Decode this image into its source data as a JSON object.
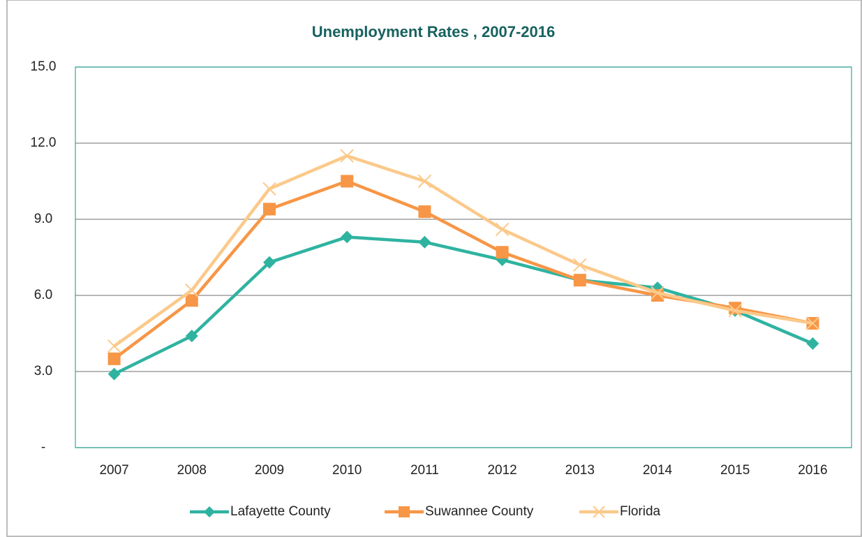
{
  "chart_data": {
    "type": "line",
    "title": "Unemployment Rates , 2007-2016",
    "categories": [
      "2007",
      "2008",
      "2009",
      "2010",
      "2011",
      "2012",
      "2013",
      "2014",
      "2015",
      "2016"
    ],
    "series": [
      {
        "name": "Lafayette County",
        "color": "#2fb3a1",
        "marker": "diamond",
        "values": [
          2.9,
          4.4,
          7.3,
          8.3,
          8.1,
          7.4,
          6.6,
          6.3,
          5.4,
          4.1
        ]
      },
      {
        "name": "Suwannee County",
        "color": "#f79646",
        "marker": "square",
        "values": [
          3.5,
          5.8,
          9.4,
          10.5,
          9.3,
          7.7,
          6.6,
          6.0,
          5.5,
          4.9
        ]
      },
      {
        "name": "Florida",
        "color": "#fbc98a",
        "marker": "x",
        "values": [
          4.0,
          6.2,
          10.2,
          11.5,
          10.5,
          8.6,
          7.2,
          6.1,
          5.4,
          4.9
        ]
      }
    ],
    "ylim": [
      0,
      15
    ],
    "yticks": [
      {
        "value": 0,
        "label": "-"
      },
      {
        "value": 3,
        "label": "3.0"
      },
      {
        "value": 6,
        "label": "6.0"
      },
      {
        "value": 9,
        "label": "9.0"
      },
      {
        "value": 12,
        "label": "12.0"
      },
      {
        "value": 15,
        "label": "15.0"
      }
    ],
    "grid": true,
    "legend": "bottom"
  }
}
